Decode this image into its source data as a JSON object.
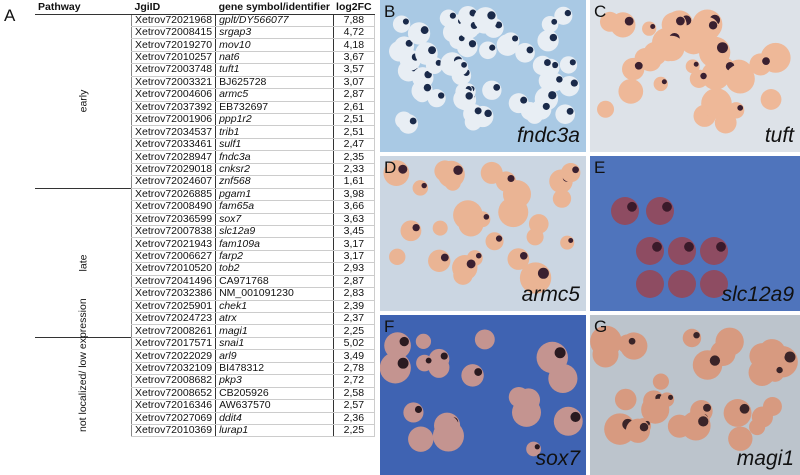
{
  "panel_a": {
    "label": "A",
    "headers": [
      "Pathway",
      "JgiID",
      "gene symbol/identifier",
      "log2FC"
    ],
    "groups": [
      {
        "pathway": "early",
        "rows": [
          [
            "Xetrov72021968",
            "gplt/DY566077",
            "7,88",
            true
          ],
          [
            "Xetrov72008415",
            "srgap3",
            "4,72",
            true
          ],
          [
            "Xetrov72019270",
            "mov10",
            "4,18",
            true
          ],
          [
            "Xetrov72010257",
            "nat6",
            "3,67",
            true
          ],
          [
            "Xetrov72003748",
            "tuft1",
            "3,57",
            true
          ],
          [
            "Xetrov72003321",
            "BJ625728",
            "3,07",
            false
          ],
          [
            "Xetrov72004606",
            "armc5",
            "2,87",
            true
          ],
          [
            "Xetrov72037392",
            "EB732697",
            "2,61",
            false
          ],
          [
            "Xetrov72001906",
            "ppp1r2",
            "2,51",
            true
          ],
          [
            "Xetrov72034537",
            "trib1",
            "2,51",
            true
          ],
          [
            "Xetrov72033461",
            "sulf1",
            "2,47",
            true
          ],
          [
            "Xetrov72028947",
            "fndc3a",
            "2,35",
            true
          ],
          [
            "Xetrov72029018",
            "cnksr2",
            "2,33",
            true
          ],
          [
            "Xetrov72024607",
            "znf568",
            "1,61",
            true
          ]
        ]
      },
      {
        "pathway": "late",
        "rows": [
          [
            "Xetrov72026885",
            "pgam1",
            "3,98",
            true
          ],
          [
            "Xetrov72008490",
            "fam65a",
            "3,66",
            true
          ],
          [
            "Xetrov72036599",
            "sox7",
            "3,63",
            true
          ],
          [
            "Xetrov72007838",
            "slc12a9",
            "3,45",
            true
          ],
          [
            "Xetrov72021943",
            "fam109a",
            "3,17",
            true
          ],
          [
            "Xetrov72006627",
            "farp2",
            "3,17",
            true
          ],
          [
            "Xetrov72010520",
            "tob2",
            "2,93",
            true
          ],
          [
            "Xetrov72041496",
            "CA971768",
            "2,87",
            false
          ],
          [
            "Xetrov72032386",
            "NM_001091230",
            "2,83",
            false
          ],
          [
            "Xetrov72025901",
            "chek1",
            "2,39",
            true
          ],
          [
            "Xetrov72024723",
            "atrx",
            "2,37",
            true
          ],
          [
            "Xetrov72008261",
            "magi1",
            "2,25",
            true
          ]
        ]
      },
      {
        "pathway": "not localized/ low expression",
        "rows": [
          [
            "Xetrov72017571",
            "snai1",
            "5,02",
            true
          ],
          [
            "Xetrov72022029",
            "arl9",
            "3,49",
            true
          ],
          [
            "Xetrov72032109",
            "BI478312",
            "2,78",
            false
          ],
          [
            "Xetrov72008682",
            "pkp3",
            "2,72",
            true
          ],
          [
            "Xetrov72008652",
            "CB205926",
            "2,58",
            false
          ],
          [
            "Xetrov72016346",
            "AW637570",
            "2,57",
            false
          ],
          [
            "Xetrov72027069",
            "ddit4",
            "2,36",
            true
          ],
          [
            "Xetrov72010369",
            "lurap1",
            "2,25",
            true
          ]
        ]
      }
    ]
  },
  "photos": [
    {
      "label": "B",
      "gene": "fndc3a",
      "bg": "#a9c9e4",
      "embryo": "#e8eef4",
      "stain": "#1a2a4a"
    },
    {
      "label": "C",
      "gene": "tuft",
      "bg": "#dde2e8",
      "embryo": "#eeb898",
      "stain": "#3a2030"
    },
    {
      "label": "D",
      "gene": "armc5",
      "bg": "#cbd6e2",
      "embryo": "#eab494",
      "stain": "#3a2030"
    },
    {
      "label": "E",
      "gene": "slc12a9",
      "bg": "#4f74bc",
      "embryo": "#8e4c62",
      "stain": "#3a1a2a"
    },
    {
      "label": "F",
      "gene": "sox7",
      "bg": "#3f63b2",
      "embryo": "#c49490",
      "stain": "#2a1a20"
    },
    {
      "label": "G",
      "gene": "magi1",
      "bg": "#bcc4cc",
      "embryo": "#d79a80",
      "stain": "#3a2428"
    }
  ]
}
